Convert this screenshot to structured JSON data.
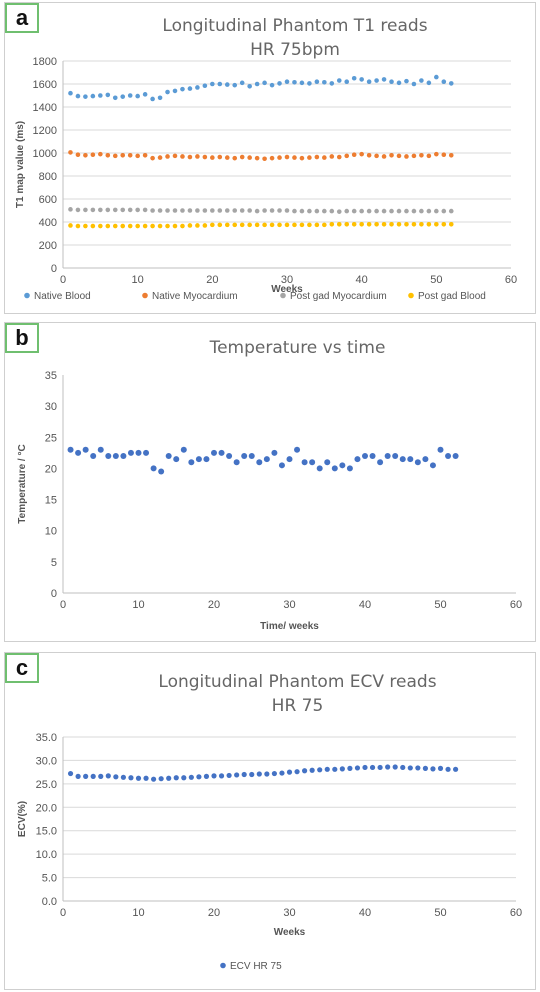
{
  "panels": [
    {
      "tag": "a",
      "chart_data": {
        "type": "scatter",
        "title": "Longitudinal Phantom T1 reads",
        "subtitle": "HR 75bpm",
        "xlabel": "Weeks",
        "ylabel": "T1 map value (ms)",
        "xlim": [
          0,
          60
        ],
        "ylim": [
          0,
          1800
        ],
        "xticks": [
          0,
          10,
          20,
          30,
          40,
          50,
          60
        ],
        "yticks": [
          0,
          200,
          400,
          600,
          800,
          1000,
          1200,
          1400,
          1600,
          1800
        ],
        "grid": true,
        "legend_position": "bottom",
        "series": [
          {
            "name": "Native Blood",
            "color": "#5b9bd5",
            "x": [
              1,
              2,
              3,
              4,
              5,
              6,
              7,
              8,
              9,
              10,
              11,
              12,
              13,
              14,
              15,
              16,
              17,
              18,
              19,
              20,
              21,
              22,
              23,
              24,
              25,
              26,
              27,
              28,
              29,
              30,
              31,
              32,
              33,
              34,
              35,
              36,
              37,
              38,
              39,
              40,
              41,
              42,
              43,
              44,
              45,
              46,
              47,
              48,
              49,
              50,
              51,
              52
            ],
            "y": [
              1520,
              1495,
              1490,
              1495,
              1500,
              1505,
              1480,
              1490,
              1500,
              1495,
              1510,
              1470,
              1480,
              1530,
              1540,
              1555,
              1560,
              1570,
              1585,
              1600,
              1600,
              1595,
              1590,
              1610,
              1580,
              1600,
              1610,
              1590,
              1605,
              1620,
              1615,
              1610,
              1605,
              1620,
              1615,
              1605,
              1630,
              1620,
              1650,
              1640,
              1620,
              1630,
              1640,
              1620,
              1610,
              1625,
              1600,
              1630,
              1610,
              1660,
              1620,
              1605
            ]
          },
          {
            "name": "Native Myocardium",
            "color": "#ed7d31",
            "x": [
              1,
              2,
              3,
              4,
              5,
              6,
              7,
              8,
              9,
              10,
              11,
              12,
              13,
              14,
              15,
              16,
              17,
              18,
              19,
              20,
              21,
              22,
              23,
              24,
              25,
              26,
              27,
              28,
              29,
              30,
              31,
              32,
              33,
              34,
              35,
              36,
              37,
              38,
              39,
              40,
              41,
              42,
              43,
              44,
              45,
              46,
              47,
              48,
              49,
              50,
              51,
              52
            ],
            "y": [
              1005,
              985,
              980,
              985,
              990,
              980,
              975,
              980,
              980,
              975,
              980,
              955,
              960,
              970,
              975,
              970,
              965,
              970,
              965,
              960,
              965,
              960,
              955,
              965,
              960,
              955,
              950,
              955,
              960,
              965,
              960,
              955,
              960,
              965,
              960,
              970,
              965,
              975,
              985,
              990,
              980,
              975,
              970,
              980,
              975,
              970,
              975,
              980,
              975,
              990,
              985,
              980
            ]
          },
          {
            "name": "Post gad Myocardium",
            "color": "#a5a5a5",
            "x": [
              1,
              2,
              3,
              4,
              5,
              6,
              7,
              8,
              9,
              10,
              11,
              12,
              13,
              14,
              15,
              16,
              17,
              18,
              19,
              20,
              21,
              22,
              23,
              24,
              25,
              26,
              27,
              28,
              29,
              30,
              31,
              32,
              33,
              34,
              35,
              36,
              37,
              38,
              39,
              40,
              41,
              42,
              43,
              44,
              45,
              46,
              47,
              48,
              49,
              50,
              51,
              52
            ],
            "y": [
              510,
              505,
              505,
              505,
              505,
              505,
              505,
              505,
              505,
              505,
              505,
              500,
              500,
              500,
              500,
              500,
              500,
              500,
              500,
              500,
              500,
              500,
              500,
              500,
              500,
              495,
              500,
              500,
              500,
              500,
              495,
              495,
              495,
              495,
              495,
              495,
              490,
              495,
              495,
              495,
              495,
              495,
              495,
              495,
              495,
              495,
              495,
              495,
              495,
              495,
              495,
              495
            ]
          },
          {
            "name": "Post gad Blood",
            "color": "#ffc000",
            "x": [
              1,
              2,
              3,
              4,
              5,
              6,
              7,
              8,
              9,
              10,
              11,
              12,
              13,
              14,
              15,
              16,
              17,
              18,
              19,
              20,
              21,
              22,
              23,
              24,
              25,
              26,
              27,
              28,
              29,
              30,
              31,
              32,
              33,
              34,
              35,
              36,
              37,
              38,
              39,
              40,
              41,
              42,
              43,
              44,
              45,
              46,
              47,
              48,
              49,
              50,
              51,
              52
            ],
            "y": [
              370,
              365,
              365,
              365,
              365,
              365,
              365,
              365,
              365,
              365,
              365,
              365,
              365,
              365,
              365,
              365,
              370,
              370,
              370,
              375,
              375,
              375,
              375,
              375,
              375,
              375,
              375,
              375,
              375,
              375,
              375,
              375,
              375,
              375,
              375,
              380,
              380,
              380,
              380,
              380,
              380,
              380,
              380,
              380,
              380,
              380,
              380,
              380,
              380,
              380,
              380,
              380
            ]
          }
        ]
      }
    },
    {
      "tag": "b",
      "chart_data": {
        "type": "scatter",
        "title": "Temperature vs time",
        "subtitle": "",
        "xlabel": "Time/ weeks",
        "ylabel": "Temperature / °C",
        "xlim": [
          0,
          60
        ],
        "ylim": [
          0,
          35
        ],
        "xticks": [
          0,
          10,
          20,
          30,
          40,
          50,
          60
        ],
        "yticks": [
          0,
          5,
          10,
          15,
          20,
          25,
          30,
          35
        ],
        "grid": false,
        "legend_position": "none",
        "series": [
          {
            "name": "",
            "color": "#4472c4",
            "x": [
              1,
              2,
              3,
              4,
              5,
              6,
              7,
              8,
              9,
              10,
              11,
              12,
              13,
              14,
              15,
              16,
              17,
              18,
              19,
              20,
              21,
              22,
              23,
              24,
              25,
              26,
              27,
              28,
              29,
              30,
              31,
              32,
              33,
              34,
              35,
              36,
              37,
              38,
              39,
              40,
              41,
              42,
              43,
              44,
              45,
              46,
              47,
              48,
              49,
              50,
              51,
              52
            ],
            "y": [
              23,
              22.5,
              23,
              22,
              23,
              22,
              22,
              22,
              22.5,
              22.5,
              22.5,
              20,
              19.5,
              22,
              21.5,
              23,
              21,
              21.5,
              21.5,
              22.5,
              22.5,
              22,
              21,
              22,
              22,
              21,
              21.5,
              22.5,
              20.5,
              21.5,
              23,
              21,
              21,
              20,
              21,
              20,
              20.5,
              20,
              21.5,
              22,
              22,
              21,
              22,
              22,
              21.5,
              21.5,
              21,
              21.5,
              20.5,
              23,
              22,
              22
            ]
          }
        ]
      }
    },
    {
      "tag": "c",
      "chart_data": {
        "type": "scatter",
        "title": "Longitudinal Phantom ECV reads",
        "subtitle": "HR 75",
        "xlabel": "Weeks",
        "ylabel": "ECV(%)",
        "xlim": [
          0,
          60
        ],
        "ylim": [
          0,
          35
        ],
        "xticks": [
          0,
          10,
          20,
          30,
          40,
          50,
          60
        ],
        "yticks": [
          0,
          5,
          10,
          15,
          20,
          25,
          30,
          35
        ],
        "ytick_labels": [
          "0.0",
          "5.0",
          "10.0",
          "15.0",
          "20.0",
          "25.0",
          "30.0",
          "35.0"
        ],
        "grid": true,
        "legend_position": "bottom",
        "series": [
          {
            "name": "ECV HR 75",
            "color": "#4472c4",
            "x": [
              1,
              2,
              3,
              4,
              5,
              6,
              7,
              8,
              9,
              10,
              11,
              12,
              13,
              14,
              15,
              16,
              17,
              18,
              19,
              20,
              21,
              22,
              23,
              24,
              25,
              26,
              27,
              28,
              29,
              30,
              31,
              32,
              33,
              34,
              35,
              36,
              37,
              38,
              39,
              40,
              41,
              42,
              43,
              44,
              45,
              46,
              47,
              48,
              49,
              50,
              51,
              52
            ],
            "y": [
              27.2,
              26.6,
              26.6,
              26.6,
              26.6,
              26.7,
              26.5,
              26.4,
              26.3,
              26.2,
              26.2,
              26.0,
              26.1,
              26.2,
              26.3,
              26.3,
              26.4,
              26.5,
              26.6,
              26.7,
              26.7,
              26.8,
              26.9,
              27.0,
              27.0,
              27.1,
              27.1,
              27.2,
              27.3,
              27.5,
              27.6,
              27.8,
              27.9,
              28.0,
              28.1,
              28.1,
              28.2,
              28.3,
              28.4,
              28.5,
              28.5,
              28.5,
              28.6,
              28.6,
              28.5,
              28.4,
              28.4,
              28.3,
              28.2,
              28.3,
              28.1,
              28.1
            ]
          }
        ]
      }
    }
  ]
}
